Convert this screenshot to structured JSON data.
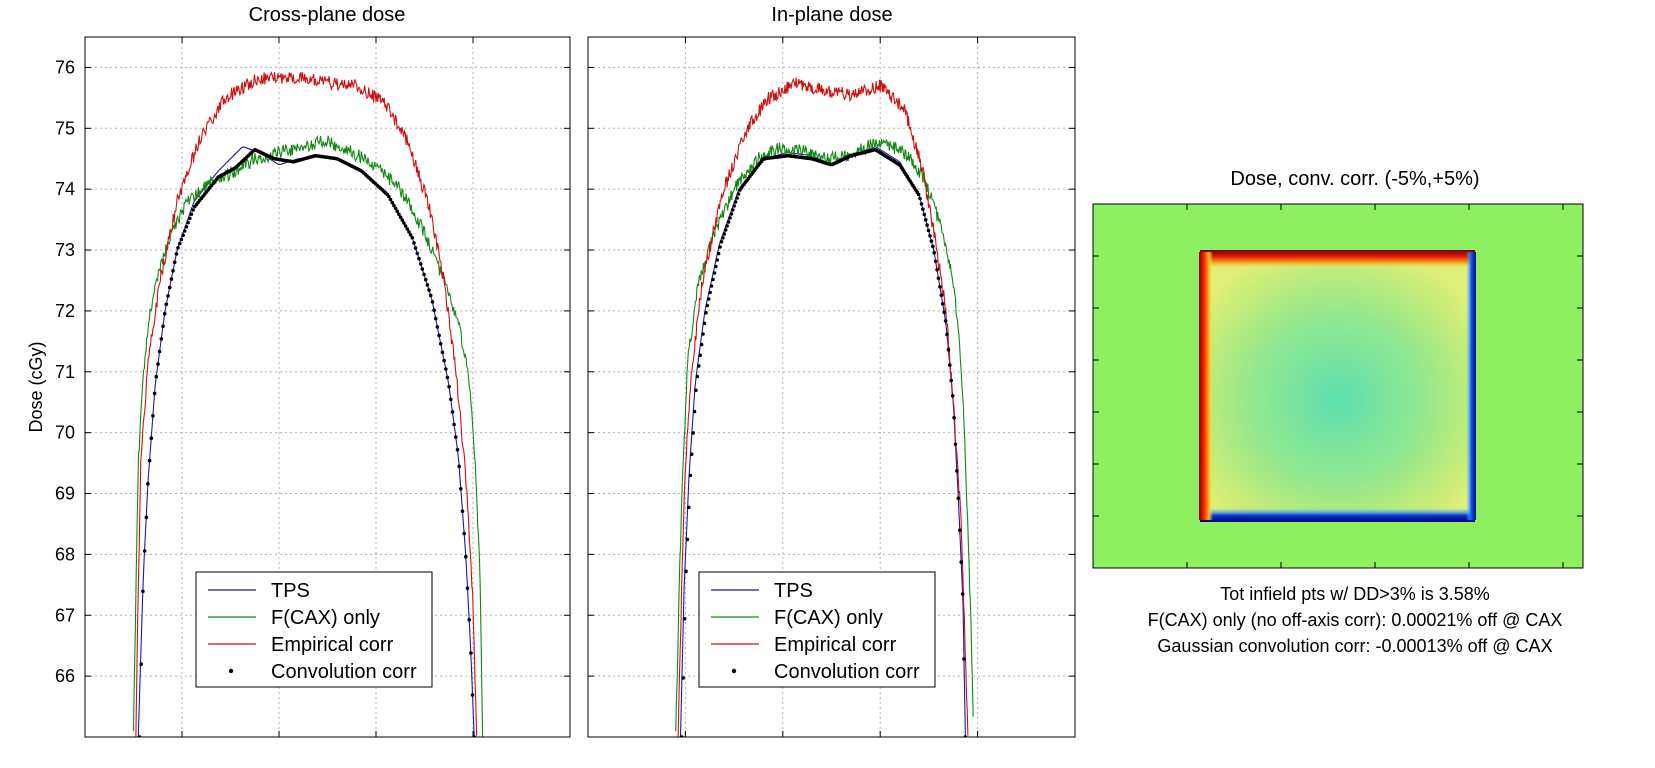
{
  "colors": {
    "tps": "#1a1aa8",
    "fcax": "#118a11",
    "emp": "#d01010",
    "conv": "#000000",
    "map_bg": "#8ef060",
    "map_field": "#a8e86a"
  },
  "chart_data": [
    {
      "type": "line",
      "title": "Cross-plane dose",
      "xlabel": "",
      "ylabel": "Dose (cGy)",
      "ylim": [
        65,
        76.5
      ],
      "yticks": [
        66,
        67,
        68,
        69,
        70,
        71,
        72,
        73,
        74,
        75,
        76
      ],
      "xlim": [
        -1,
        1
      ],
      "grid": true,
      "legend_position": "bottom-center",
      "legend": [
        "TPS",
        "F(CAX) only",
        "Empirical corr",
        "Convolution corr"
      ],
      "series": [
        {
          "name": "TPS",
          "style": "line",
          "points": [
            [
              -0.78,
              65
            ],
            [
              -0.76,
              67.6
            ],
            [
              -0.74,
              69.2
            ],
            [
              -0.71,
              70.8
            ],
            [
              -0.67,
              72.0
            ],
            [
              -0.62,
              73.0
            ],
            [
              -0.55,
              73.8
            ],
            [
              -0.45,
              74.3
            ],
            [
              -0.35,
              74.7
            ],
            [
              -0.28,
              74.6
            ],
            [
              -0.2,
              74.4
            ],
            [
              -0.12,
              74.5
            ],
            [
              -0.04,
              74.55
            ],
            [
              0.04,
              74.5
            ],
            [
              0.14,
              74.3
            ],
            [
              0.25,
              73.9
            ],
            [
              0.35,
              73.2
            ],
            [
              0.43,
              72.2
            ],
            [
              0.5,
              70.8
            ],
            [
              0.54,
              69.6
            ],
            [
              0.57,
              68.0
            ],
            [
              0.59,
              66.5
            ],
            [
              0.605,
              65
            ]
          ]
        },
        {
          "name": "F(CAX) only",
          "style": "line",
          "points": [
            [
              -0.8,
              65
            ],
            [
              -0.79,
              67.5
            ],
            [
              -0.78,
              69.5
            ],
            [
              -0.76,
              71.0
            ],
            [
              -0.72,
              72.3
            ],
            [
              -0.66,
              73.1
            ],
            [
              -0.58,
              73.8
            ],
            [
              -0.48,
              74.1
            ],
            [
              -0.38,
              74.3
            ],
            [
              -0.3,
              74.5
            ],
            [
              -0.2,
              74.6
            ],
            [
              -0.1,
              74.7
            ],
            [
              0.0,
              74.8
            ],
            [
              0.1,
              74.6
            ],
            [
              0.2,
              74.4
            ],
            [
              0.3,
              74.0
            ],
            [
              0.4,
              73.3
            ],
            [
              0.48,
              72.5
            ],
            [
              0.54,
              71.8
            ],
            [
              0.58,
              71.0
            ],
            [
              0.61,
              69.5
            ],
            [
              0.63,
              67.5
            ],
            [
              0.64,
              65
            ]
          ]
        },
        {
          "name": "Empirical corr",
          "style": "line",
          "points": [
            [
              -0.79,
              65
            ],
            [
              -0.78,
              67.5
            ],
            [
              -0.77,
              69.5
            ],
            [
              -0.74,
              71.2
            ],
            [
              -0.69,
              72.5
            ],
            [
              -0.62,
              73.8
            ],
            [
              -0.52,
              74.9
            ],
            [
              -0.42,
              75.5
            ],
            [
              -0.3,
              75.8
            ],
            [
              -0.15,
              75.85
            ],
            [
              0.0,
              75.75
            ],
            [
              0.12,
              75.7
            ],
            [
              0.24,
              75.4
            ],
            [
              0.34,
              74.7
            ],
            [
              0.42,
              73.7
            ],
            [
              0.48,
              72.5
            ],
            [
              0.53,
              71.0
            ],
            [
              0.57,
              69.3
            ],
            [
              0.6,
              67.2
            ],
            [
              0.615,
              65
            ]
          ]
        },
        {
          "name": "Convolution corr",
          "style": "dots",
          "points": [
            [
              -0.775,
              65
            ],
            [
              -0.76,
              67.6
            ],
            [
              -0.74,
              69.2
            ],
            [
              -0.71,
              70.8
            ],
            [
              -0.67,
              72.0
            ],
            [
              -0.62,
              73.0
            ],
            [
              -0.55,
              73.7
            ],
            [
              -0.45,
              74.2
            ],
            [
              -0.38,
              74.35
            ],
            [
              -0.3,
              74.65
            ],
            [
              -0.22,
              74.5
            ],
            [
              -0.14,
              74.45
            ],
            [
              -0.05,
              74.55
            ],
            [
              0.04,
              74.5
            ],
            [
              0.14,
              74.3
            ],
            [
              0.25,
              73.9
            ],
            [
              0.35,
              73.2
            ],
            [
              0.43,
              72.2
            ],
            [
              0.5,
              70.8
            ],
            [
              0.54,
              69.6
            ],
            [
              0.57,
              68.0
            ],
            [
              0.59,
              66.5
            ],
            [
              0.605,
              65
            ]
          ]
        }
      ]
    },
    {
      "type": "line",
      "title": "In-plane dose",
      "xlabel": "",
      "ylabel": "",
      "ylim": [
        65,
        76.5
      ],
      "xlim": [
        -1,
        1
      ],
      "grid": true,
      "legend_position": "bottom-center",
      "legend": [
        "TPS",
        "F(CAX) only",
        "Empirical corr",
        "Convolution corr"
      ],
      "series": [
        {
          "name": "TPS",
          "style": "line",
          "points": [
            [
              -0.62,
              65
            ],
            [
              -0.605,
              67.5
            ],
            [
              -0.585,
              69.3
            ],
            [
              -0.56,
              70.8
            ],
            [
              -0.52,
              72.0
            ],
            [
              -0.46,
              73.1
            ],
            [
              -0.38,
              74.0
            ],
            [
              -0.28,
              74.5
            ],
            [
              -0.18,
              74.6
            ],
            [
              -0.08,
              74.55
            ],
            [
              0.0,
              74.4
            ],
            [
              0.08,
              74.55
            ],
            [
              0.18,
              74.7
            ],
            [
              0.28,
              74.45
            ],
            [
              0.36,
              73.9
            ],
            [
              0.42,
              73.0
            ],
            [
              0.47,
              71.8
            ],
            [
              0.5,
              70.5
            ],
            [
              0.52,
              69.0
            ],
            [
              0.54,
              67.2
            ],
            [
              0.55,
              65
            ]
          ]
        },
        {
          "name": "F(CAX) only",
          "style": "line",
          "points": [
            [
              -0.64,
              65
            ],
            [
              -0.625,
              67.5
            ],
            [
              -0.61,
              69.5
            ],
            [
              -0.59,
              71.2
            ],
            [
              -0.55,
              72.4
            ],
            [
              -0.48,
              73.3
            ],
            [
              -0.4,
              74.0
            ],
            [
              -0.3,
              74.5
            ],
            [
              -0.2,
              74.7
            ],
            [
              -0.1,
              74.6
            ],
            [
              0.0,
              74.5
            ],
            [
              0.1,
              74.6
            ],
            [
              0.2,
              74.8
            ],
            [
              0.3,
              74.6
            ],
            [
              0.38,
              74.2
            ],
            [
              0.44,
              73.5
            ],
            [
              0.49,
              72.7
            ],
            [
              0.52,
              71.8
            ],
            [
              0.54,
              70.5
            ],
            [
              0.56,
              68.5
            ],
            [
              0.575,
              66.5
            ],
            [
              0.585,
              65
            ]
          ]
        },
        {
          "name": "Empirical corr",
          "style": "line",
          "points": [
            [
              -0.63,
              65
            ],
            [
              -0.615,
              67.5
            ],
            [
              -0.6,
              69.5
            ],
            [
              -0.575,
              71.0
            ],
            [
              -0.53,
              72.5
            ],
            [
              -0.45,
              73.9
            ],
            [
              -0.36,
              74.9
            ],
            [
              -0.26,
              75.5
            ],
            [
              -0.14,
              75.75
            ],
            [
              -0.02,
              75.6
            ],
            [
              0.08,
              75.55
            ],
            [
              0.2,
              75.7
            ],
            [
              0.3,
              75.3
            ],
            [
              0.37,
              74.4
            ],
            [
              0.42,
              73.3
            ],
            [
              0.47,
              72.0
            ],
            [
              0.5,
              70.5
            ],
            [
              0.53,
              68.7
            ],
            [
              0.545,
              67.0
            ],
            [
              0.56,
              65
            ]
          ]
        },
        {
          "name": "Convolution corr",
          "style": "dots",
          "points": [
            [
              -0.615,
              65
            ],
            [
              -0.6,
              67.5
            ],
            [
              -0.58,
              69.3
            ],
            [
              -0.555,
              70.8
            ],
            [
              -0.515,
              72.0
            ],
            [
              -0.455,
              73.1
            ],
            [
              -0.375,
              74.0
            ],
            [
              -0.28,
              74.5
            ],
            [
              -0.18,
              74.55
            ],
            [
              -0.08,
              74.5
            ],
            [
              0.0,
              74.4
            ],
            [
              0.08,
              74.55
            ],
            [
              0.18,
              74.65
            ],
            [
              0.28,
              74.4
            ],
            [
              0.36,
              73.9
            ],
            [
              0.42,
              73.0
            ],
            [
              0.47,
              71.8
            ],
            [
              0.5,
              70.5
            ],
            [
              0.52,
              69.0
            ],
            [
              0.54,
              67.2
            ],
            [
              0.55,
              65
            ]
          ]
        }
      ]
    },
    {
      "type": "heatmap",
      "title": "Dose, conv. corr. (-5%,+5%)",
      "color_range": [
        "-5%",
        "+5%"
      ],
      "annotations": [
        "Tot infield pts w/ DD>3% is 3.58%",
        "F(CAX) only (no off-axis corr): 0.00021% off @ CAX",
        "Gaussian convolution corr: -0.00013% off @ CAX"
      ]
    }
  ]
}
